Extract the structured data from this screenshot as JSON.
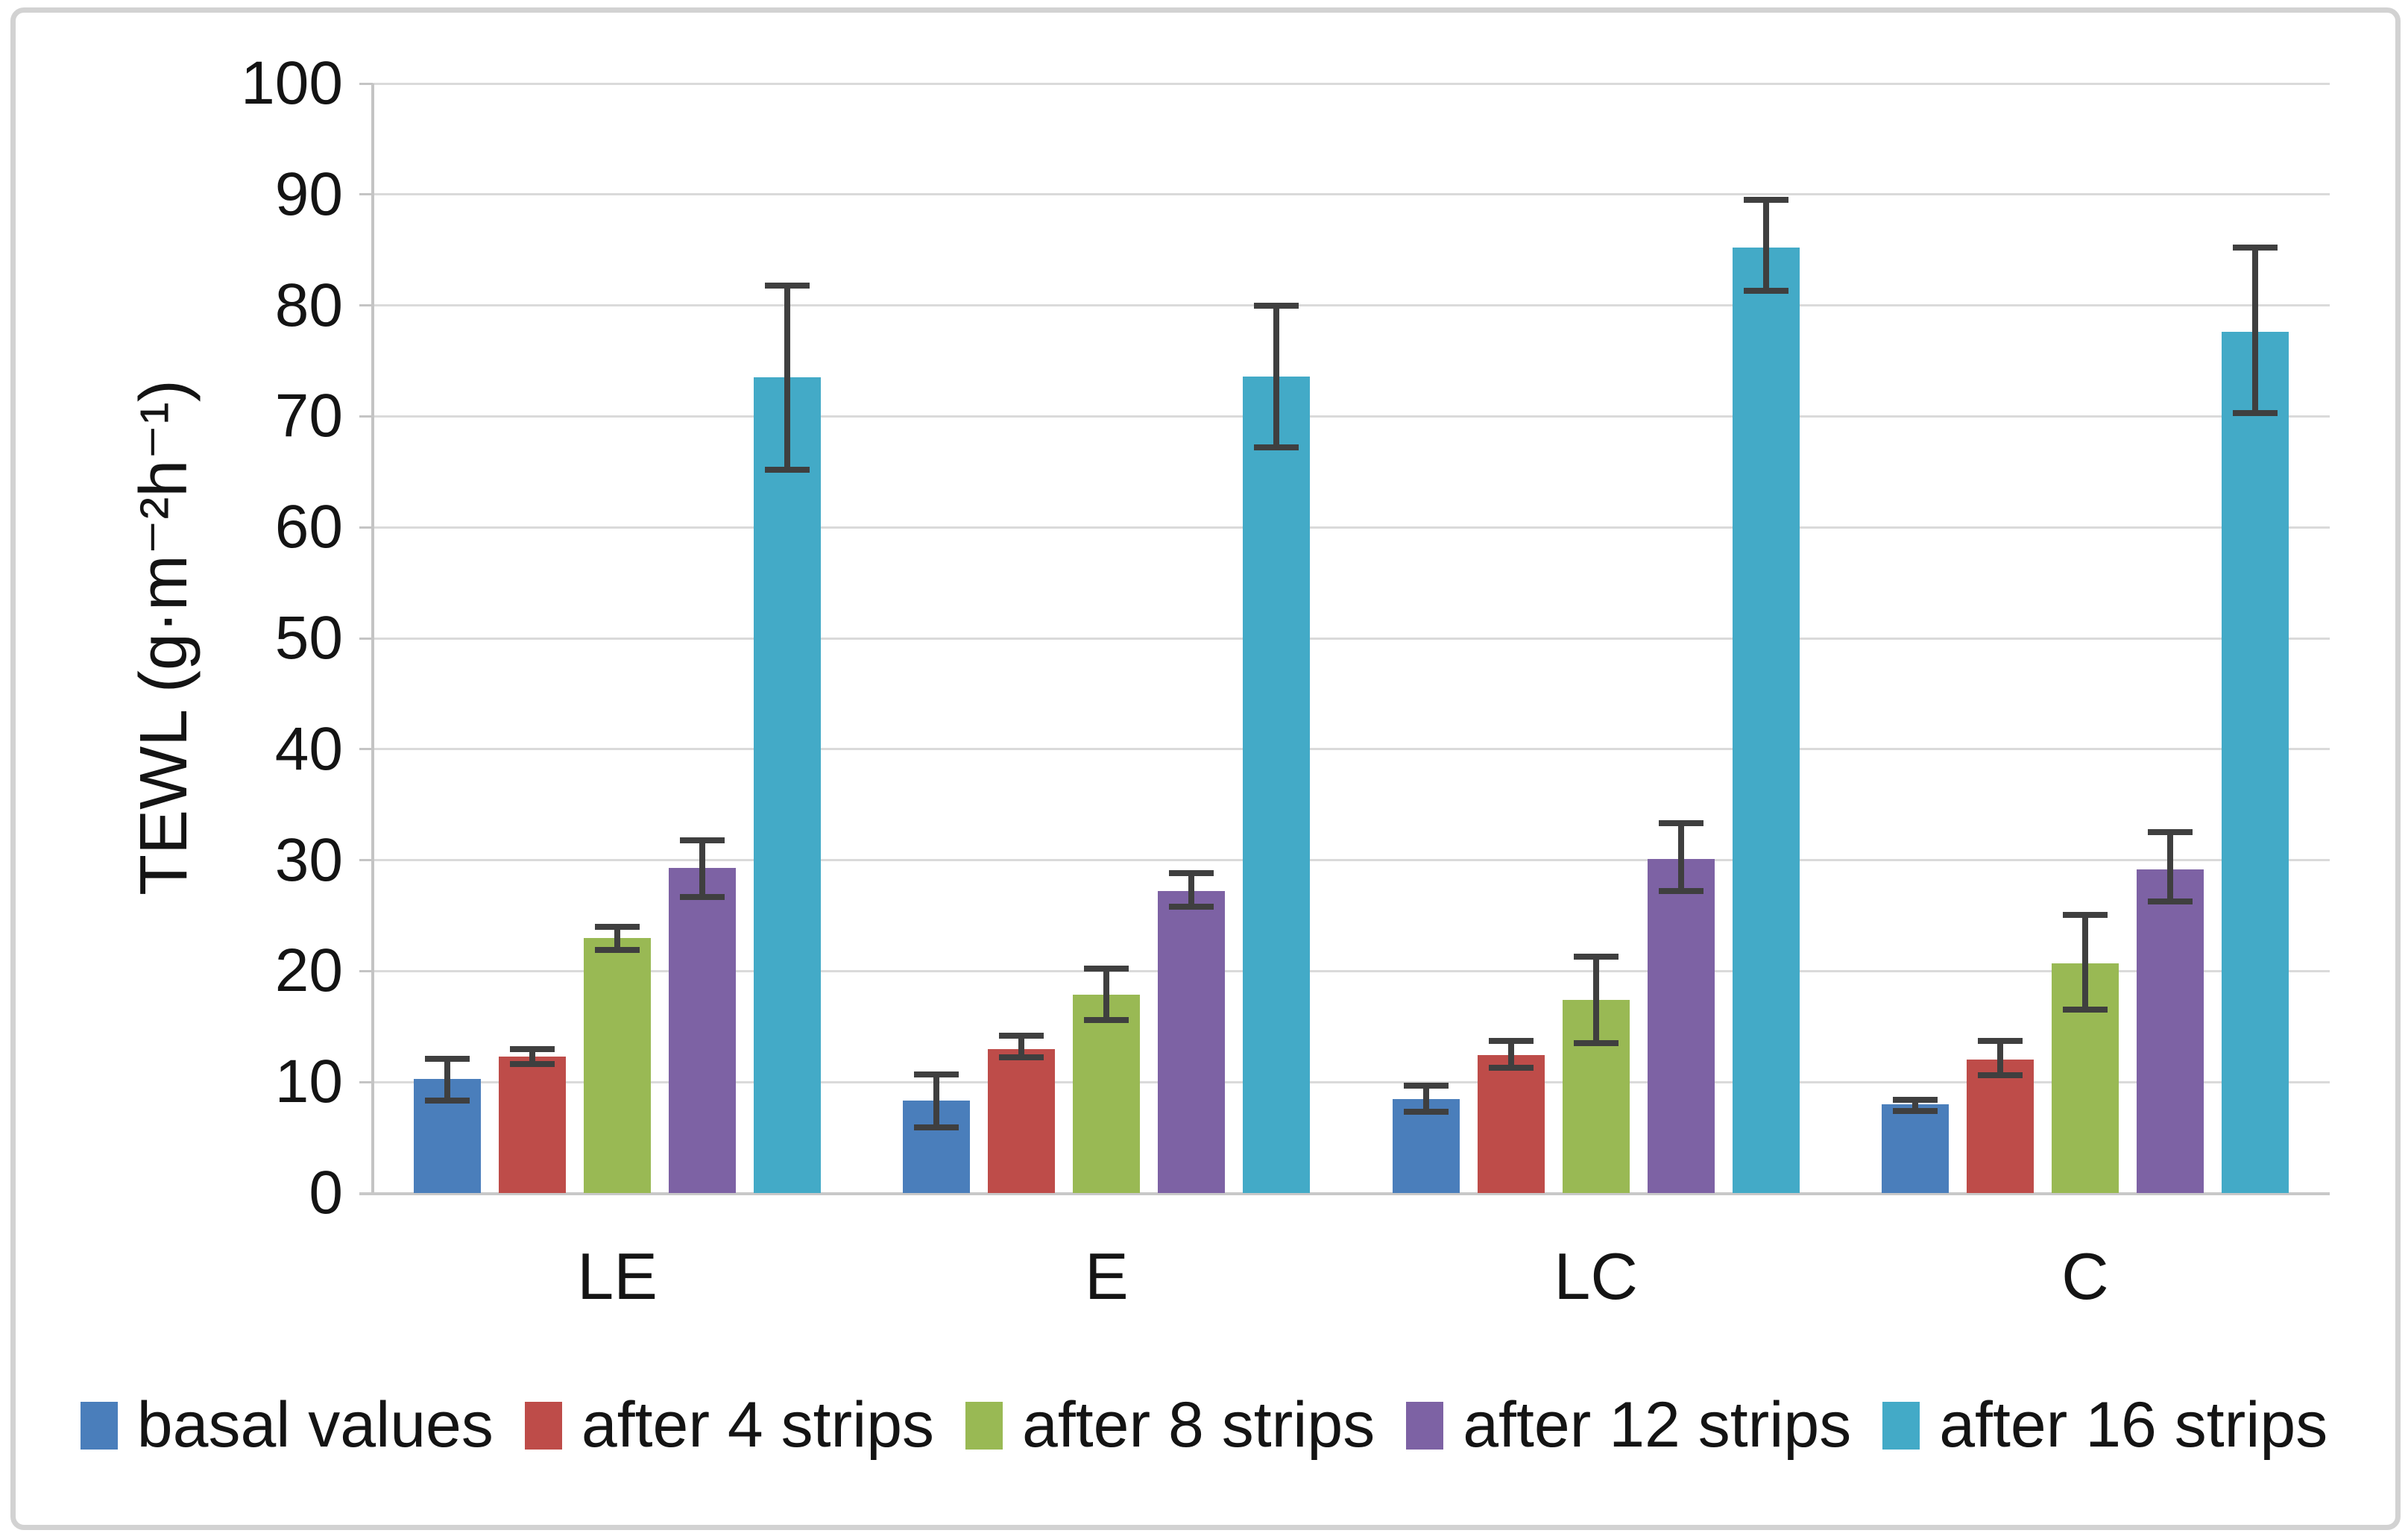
{
  "figure_frame": {
    "border_color": "#d2d2d2",
    "background": "#ffffff"
  },
  "chart_data": {
    "type": "bar",
    "title": "",
    "xlabel": "",
    "ylabel": "TEWL (g·m⁻²h⁻¹)",
    "ylim": [
      0,
      100
    ],
    "ytick_step": 10,
    "yticks": [
      "0",
      "10",
      "20",
      "30",
      "40",
      "50",
      "60",
      "70",
      "80",
      "90",
      "100"
    ],
    "grid": "horizontal",
    "grid_color": "#dadada",
    "axis_color": "#c4c4c4",
    "error_bar_color": "#3f3f3f",
    "legend_position": "bottom",
    "categories": [
      "LE",
      "E",
      "LC",
      "C"
    ],
    "series": [
      {
        "name": "basal values",
        "color": "#4a7ebb",
        "values": [
          10.3,
          8.3,
          8.5,
          8.0
        ],
        "err_low": [
          8.3,
          5.9,
          7.3,
          7.4
        ],
        "err_high": [
          12.1,
          10.7,
          9.7,
          8.4
        ]
      },
      {
        "name": "after 4 strips",
        "color": "#be4c49",
        "values": [
          12.3,
          13.0,
          12.4,
          12.0
        ],
        "err_low": [
          11.6,
          12.2,
          11.3,
          10.6
        ],
        "err_high": [
          13.0,
          14.2,
          13.7,
          13.7
        ]
      },
      {
        "name": "after 8 strips",
        "color": "#99b954",
        "values": [
          23.0,
          17.9,
          17.4,
          20.7
        ],
        "err_low": [
          21.9,
          15.6,
          13.5,
          16.5
        ],
        "err_high": [
          24.0,
          20.2,
          21.3,
          25.1
        ]
      },
      {
        "name": "after 12 strips",
        "color": "#7d62a4",
        "values": [
          29.3,
          27.2,
          30.1,
          29.2
        ],
        "err_low": [
          26.7,
          25.8,
          27.2,
          26.3
        ],
        "err_high": [
          31.8,
          28.8,
          33.3,
          32.5
        ]
      },
      {
        "name": "after 16 strips",
        "color": "#43aac7",
        "values": [
          73.5,
          73.6,
          85.2,
          77.6
        ],
        "err_low": [
          65.2,
          67.2,
          81.3,
          70.3
        ],
        "err_high": [
          81.8,
          80.0,
          89.5,
          85.2
        ]
      }
    ]
  }
}
